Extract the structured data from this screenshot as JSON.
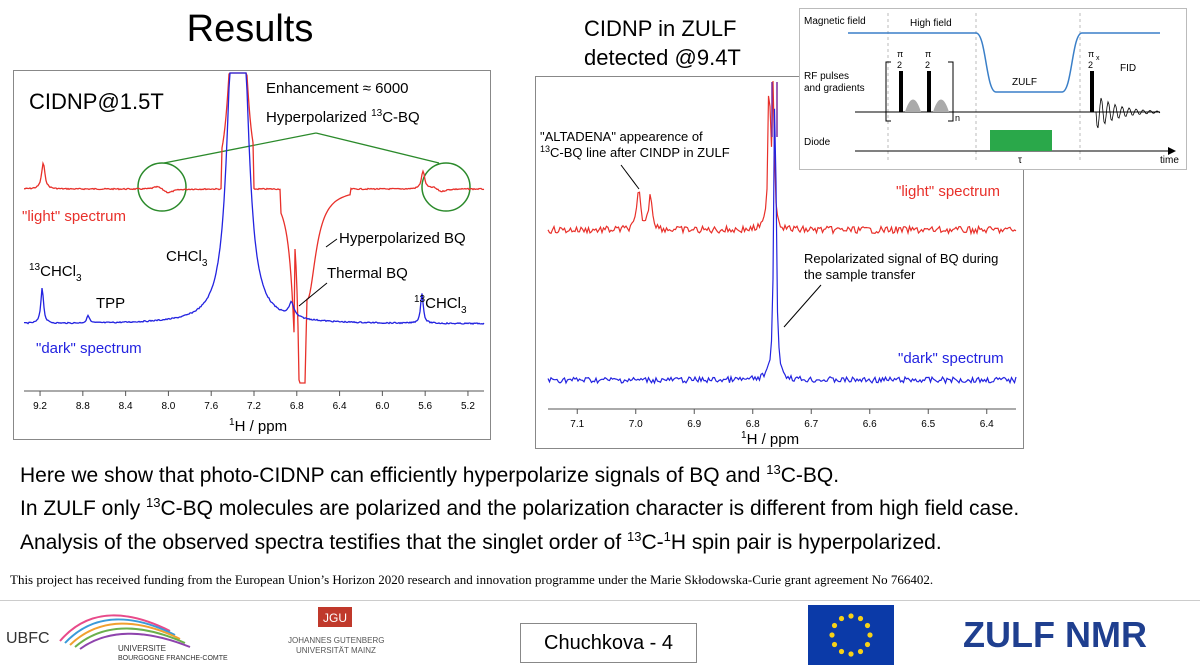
{
  "slide": {
    "title": "Results",
    "right_heading_line1": "CIDNP in ZULF",
    "right_heading_line2": "detected @9.4T",
    "body_lines": [
      {
        "pre": "Here we show that photo-CIDNP can efficiently hyperpolarize signals of BQ and ",
        "sup": "13",
        "post": "C-BQ."
      },
      {
        "pre": "In ZULF only ",
        "sup": "13",
        "post": "C-BQ molecules are polarized and the polarization character is different from high field case."
      },
      {
        "pre": "Analysis of the observed spectra testifies that the singlet order of ",
        "sup": "13",
        "mid": "C-",
        "sup2": "1",
        "post": "H spin pair is hyperpolarized."
      }
    ],
    "funding": "This project has received funding from the European Union’s Horizon 2020 research and innovation programme under the Marie Skłodowska-Curie grant agreement No 766402.",
    "footer": {
      "slide_label": "Chuchkova - 4",
      "ubfc": "UBFC",
      "univ_line1": "UNIVERSITE",
      "univ_line2": "BOURGOGNE FRANCHE-COMTE",
      "jgu": "JGU",
      "gutenberg_line1": "JOHANNES GUTENBERG",
      "gutenberg_line2": "UNIVERSITÄT MAINZ",
      "zulf_logo": "ZULF NMR"
    }
  },
  "chart_data": [
    {
      "type": "line",
      "title": "CIDNP@1.5T",
      "xlabel": "1H / ppm",
      "x_reversed": true,
      "xlim": [
        5.05,
        9.35
      ],
      "ticks": [
        9.2,
        8.8,
        8.4,
        8.0,
        7.6,
        7.2,
        6.8,
        6.4,
        6.0,
        5.6,
        5.2
      ],
      "tick_labels": [
        "9.2",
        "8.8",
        "8.4",
        "8.0",
        "7.6",
        "7.2",
        "6.8",
        "6.4",
        "6.0",
        "5.6",
        "5.2"
      ],
      "series": [
        {
          "name": "\"light\" spectrum",
          "color": "#e8302a",
          "peaks_ppm": [
            9.17,
            7.4,
            7.3,
            6.75,
            5.62,
            5.53
          ]
        },
        {
          "name": "\"dark\" spectrum",
          "color": "#2323e0",
          "peaks_ppm": [
            9.18,
            8.75,
            7.4,
            7.3,
            6.85,
            5.63
          ]
        }
      ],
      "annotations": {
        "enhancement": "Enhancement ≈ 6000",
        "hyper13c_pre": "Hyperpolarized ",
        "hyper13c_sup": "13",
        "hyper13c_post": "C-BQ",
        "hyper_bq": "Hyperpolarized BQ",
        "thermal_bq": "Thermal BQ",
        "chcl3_pre": "CHCl",
        "chcl3_sub": "3",
        "c13chcl3_sup": "13",
        "c13chcl3_main": "CHCl",
        "c13chcl3_sub": "3",
        "tpp": "TPP",
        "light_label": "\"light\" spectrum",
        "dark_label": "\"dark\" spectrum"
      }
    },
    {
      "type": "line",
      "xlabel": "1H / ppm",
      "x_reversed": true,
      "xlim": [
        6.35,
        7.15
      ],
      "ticks": [
        7.1,
        7.0,
        6.9,
        6.8,
        6.7,
        6.6,
        6.5,
        6.4
      ],
      "tick_labels": [
        "7.1",
        "7.0",
        "6.9",
        "6.8",
        "6.7",
        "6.6",
        "6.5",
        "6.4"
      ],
      "series": [
        {
          "name": "\"light\" spectrum",
          "color": "#e8302a",
          "peaks_ppm": [
            7.0,
            6.98,
            6.77,
            6.76
          ]
        },
        {
          "name": "\"dark\" spectrum",
          "color": "#2323e0",
          "peaks_ppm": [
            6.762
          ]
        }
      ],
      "annotations": {
        "altadena_line1": "\"ALTADENA\" appearence of",
        "altadena_line2_sup": "13",
        "altadena_line2": "C-BQ line after CINDP in ZULF",
        "repol_line1": "Repolarizated signal of BQ during",
        "repol_line2": "the sample transfer",
        "light_label": "\"light\" spectrum",
        "dark_label": "\"dark\" spectrum"
      }
    }
  ],
  "diagram": {
    "magnetic_field": "Magnetic field",
    "high_field": "High field",
    "rf_line1": "RF pulses",
    "rf_line2": "and gradients",
    "zulf": "ZULF",
    "fid": "FID",
    "diode": "Diode",
    "tau": "τ",
    "time": "time",
    "n": "n",
    "pi": "π",
    "two": "2",
    "x": "x",
    "gz": "Gz",
    "gz2": "G₂",
    "diode_color": "#2aa84a",
    "field_color": "#3a7fc8"
  }
}
